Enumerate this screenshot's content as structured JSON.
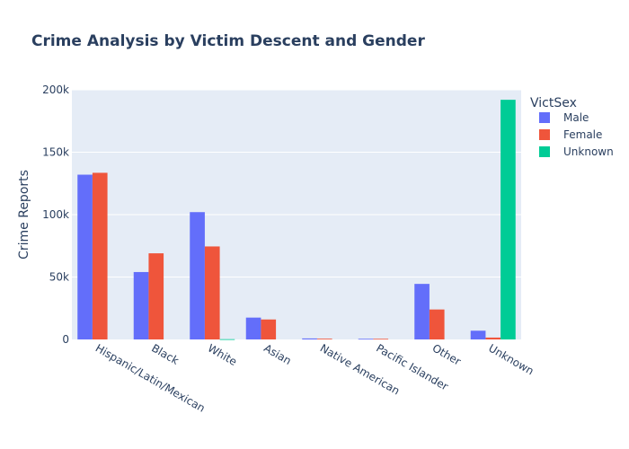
{
  "chart_data": {
    "type": "bar",
    "title": "Crime Analysis by Victim Descent and Gender",
    "xlabel": "",
    "ylabel": "Crime Reports",
    "ylim": [
      0,
      200000
    ],
    "yticks": [
      0,
      50000,
      100000,
      150000,
      200000
    ],
    "ytick_labels": [
      "0",
      "50k",
      "100k",
      "150k",
      "200k"
    ],
    "categories": [
      "Hispanic/Latin/Mexican",
      "Black",
      "White",
      "Asian",
      "Native American",
      "Pacific Islander",
      "Other",
      "Unknown"
    ],
    "legend_title": "VictSex",
    "legend_placement": "top-right outside",
    "grid": true,
    "series": [
      {
        "name": "Male",
        "color": "#636efa",
        "values": [
          132000,
          54000,
          102000,
          17500,
          800,
          500,
          44500,
          7000
        ]
      },
      {
        "name": "Female",
        "color": "#ef553b",
        "values": [
          133500,
          69000,
          74500,
          16000,
          600,
          500,
          24000,
          1500
        ]
      },
      {
        "name": "Unknown",
        "color": "#00cc96",
        "values": [
          0,
          0,
          200,
          0,
          0,
          0,
          0,
          192000
        ]
      }
    ],
    "colors": {
      "plot_bg": "#e5ecf6",
      "grid": "#ffffff",
      "text": "#2a3f5f"
    }
  }
}
